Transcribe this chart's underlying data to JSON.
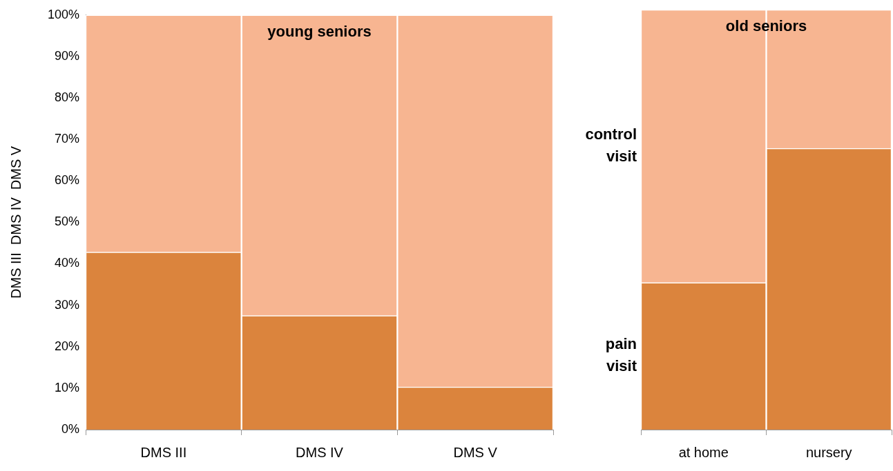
{
  "chart_data": [
    {
      "type": "bar",
      "title": "young seniors",
      "ylabel": "DMS III  DMS IV  DMS V",
      "categories": [
        "DMS III",
        "DMS IV",
        "DMS V"
      ],
      "stacked": true,
      "ylim": [
        0,
        100
      ],
      "yticks": [
        {
          "value": 0,
          "label": "0%"
        },
        {
          "value": 10,
          "label": "10%"
        },
        {
          "value": 20,
          "label": "20%"
        },
        {
          "value": 30,
          "label": "30%"
        },
        {
          "value": 40,
          "label": "40%"
        },
        {
          "value": 50,
          "label": "50%"
        },
        {
          "value": 60,
          "label": "60%"
        },
        {
          "value": 70,
          "label": "70%"
        },
        {
          "value": 80,
          "label": "80%"
        },
        {
          "value": 90,
          "label": "90%"
        },
        {
          "value": 100,
          "label": "100%"
        }
      ],
      "series": [
        {
          "color": "#db843d",
          "values": [
            42.8,
            27.5,
            10.3
          ]
        },
        {
          "color": "#f7b591",
          "values": [
            57.2,
            72.5,
            89.7
          ]
        }
      ]
    },
    {
      "type": "bar",
      "title": "old seniors",
      "categories": [
        "at home",
        "nursery"
      ],
      "stacked": true,
      "ylim": [
        0,
        100
      ],
      "tick_labels": "x",
      "series": [
        {
          "name": "pain visit",
          "color": "#db843d",
          "values": [
            35,
            67
          ]
        },
        {
          "name": "control visit",
          "color": "#f7b591",
          "values": [
            65,
            33
          ]
        }
      ]
    }
  ]
}
